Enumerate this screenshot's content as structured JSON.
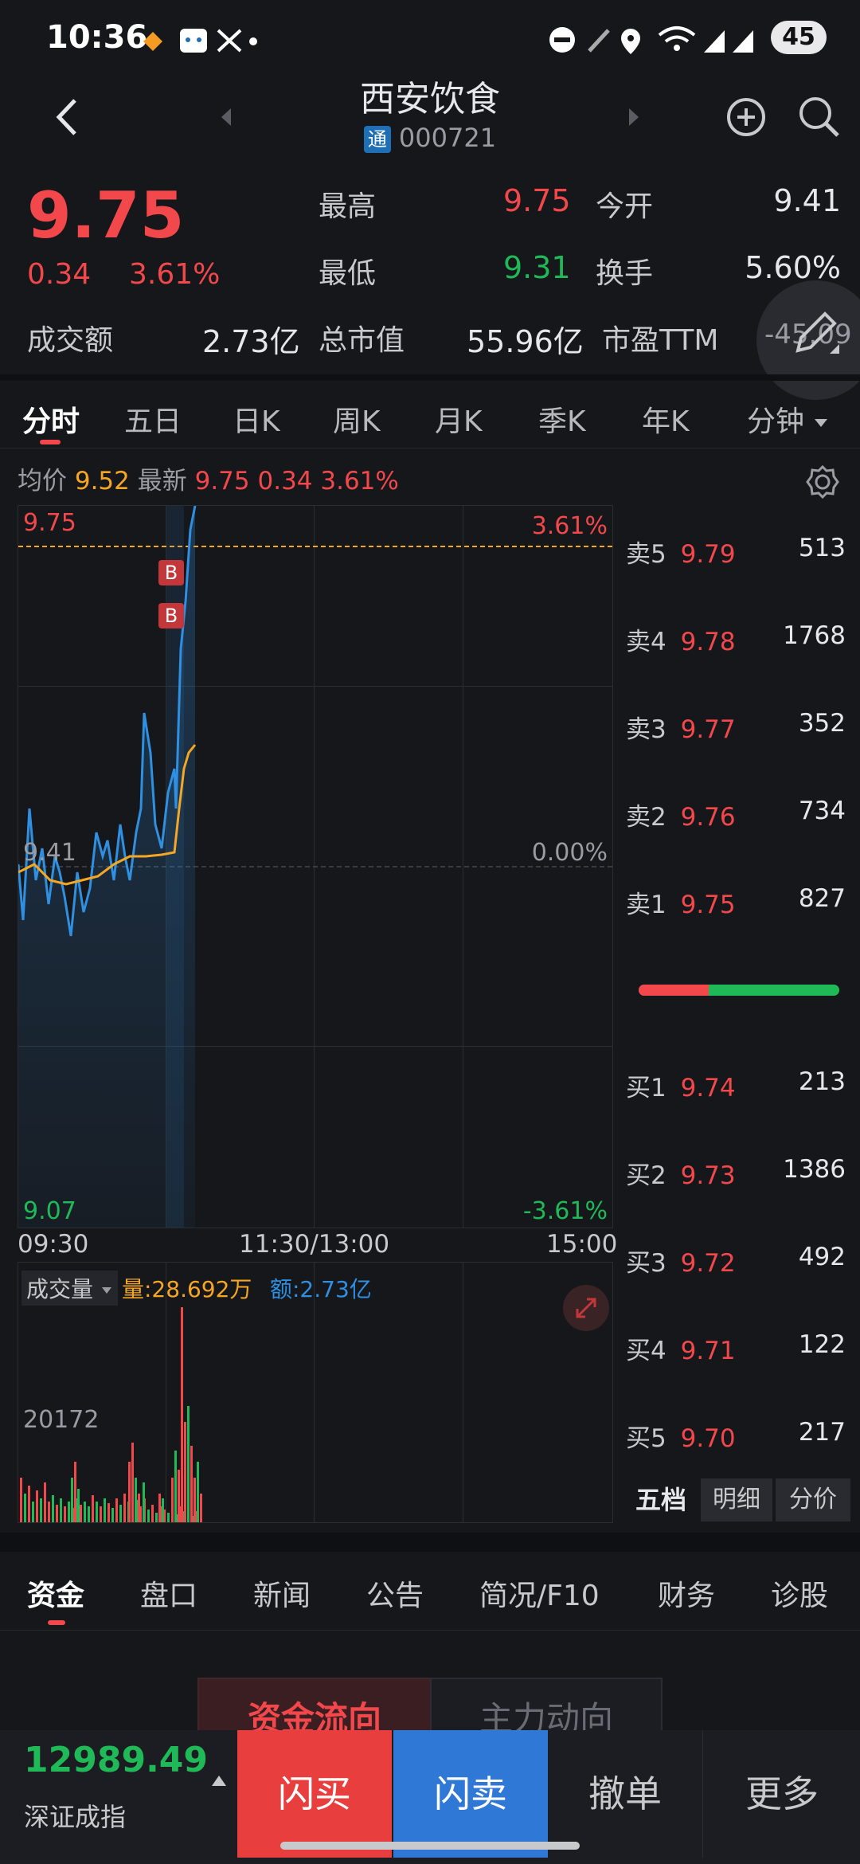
{
  "status_bar": {
    "time": "10:36",
    "battery": "45"
  },
  "header": {
    "name": "西安饮食",
    "badge": "通",
    "code": "000721"
  },
  "quote": {
    "price": "9.75",
    "change": "0.34",
    "change_pct": "3.61%",
    "high_label": "最高",
    "high": "9.75",
    "open_label": "今开",
    "open": "9.41",
    "low_label": "最低",
    "low": "9.31",
    "turnover_label": "换手",
    "turnover": "5.60%",
    "amount_label": "成交额",
    "amount": "2.73亿",
    "mcap_label": "总市值",
    "mcap": "55.96亿",
    "pe_label": "市盈TTM",
    "pe": "-45.09"
  },
  "chart_tabs": [
    "分时",
    "五日",
    "日K",
    "周K",
    "月K",
    "季K",
    "年K",
    "分钟"
  ],
  "chart_info": {
    "avg_label": "均价",
    "avg": "9.52",
    "latest_label": "最新",
    "latest": "9.75 0.34 3.61%"
  },
  "chart_labels": {
    "y_top": "9.75",
    "y_mid": "9.41",
    "y_bottom": "9.07",
    "pct_top": "3.61%",
    "pct_mid": "0.00%",
    "pct_bottom": "-3.61%",
    "x_start": "09:30",
    "x_mid": "11:30/13:00",
    "x_end": "15:00",
    "buy_marker": "B"
  },
  "volume": {
    "dropdown_label": "成交量",
    "qty_label": "量:28.692万",
    "amt_label": "额:2.73亿",
    "y_label": "20172"
  },
  "order_book": {
    "asks": [
      {
        "label": "卖5",
        "price": "9.79",
        "qty": "513"
      },
      {
        "label": "卖4",
        "price": "9.78",
        "qty": "1768"
      },
      {
        "label": "卖3",
        "price": "9.77",
        "qty": "352"
      },
      {
        "label": "卖2",
        "price": "9.76",
        "qty": "734"
      },
      {
        "label": "卖1",
        "price": "9.75",
        "qty": "827"
      }
    ],
    "bids": [
      {
        "label": "买1",
        "price": "9.74",
        "qty": "213"
      },
      {
        "label": "买2",
        "price": "9.73",
        "qty": "1386"
      },
      {
        "label": "买3",
        "price": "9.72",
        "qty": "492"
      },
      {
        "label": "买4",
        "price": "9.71",
        "qty": "122"
      },
      {
        "label": "买5",
        "price": "9.70",
        "qty": "217"
      }
    ],
    "tabs": [
      "五档",
      "明细",
      "分价"
    ]
  },
  "bottom_tabs": [
    "资金",
    "盘口",
    "新闻",
    "公告",
    "简况/F10",
    "财务",
    "诊股"
  ],
  "fund_tabs": [
    "资金流向",
    "主力动向"
  ],
  "index": {
    "value": "12989.49",
    "name": "深证成指"
  },
  "actions": {
    "buy": "闪买",
    "sell": "闪卖",
    "cancel": "撤单",
    "more": "更多"
  },
  "colors": {
    "up": "#f2484b",
    "down": "#1fba57",
    "price_line": "#2f8fe0",
    "avg_line": "#f5a623"
  },
  "icons": [
    "back-icon",
    "prev-arrow-icon",
    "next-arrow-icon",
    "add-circle-icon",
    "search-icon",
    "settings-icon",
    "edit-icon",
    "expand-icon",
    "dropdown-icon"
  ]
}
